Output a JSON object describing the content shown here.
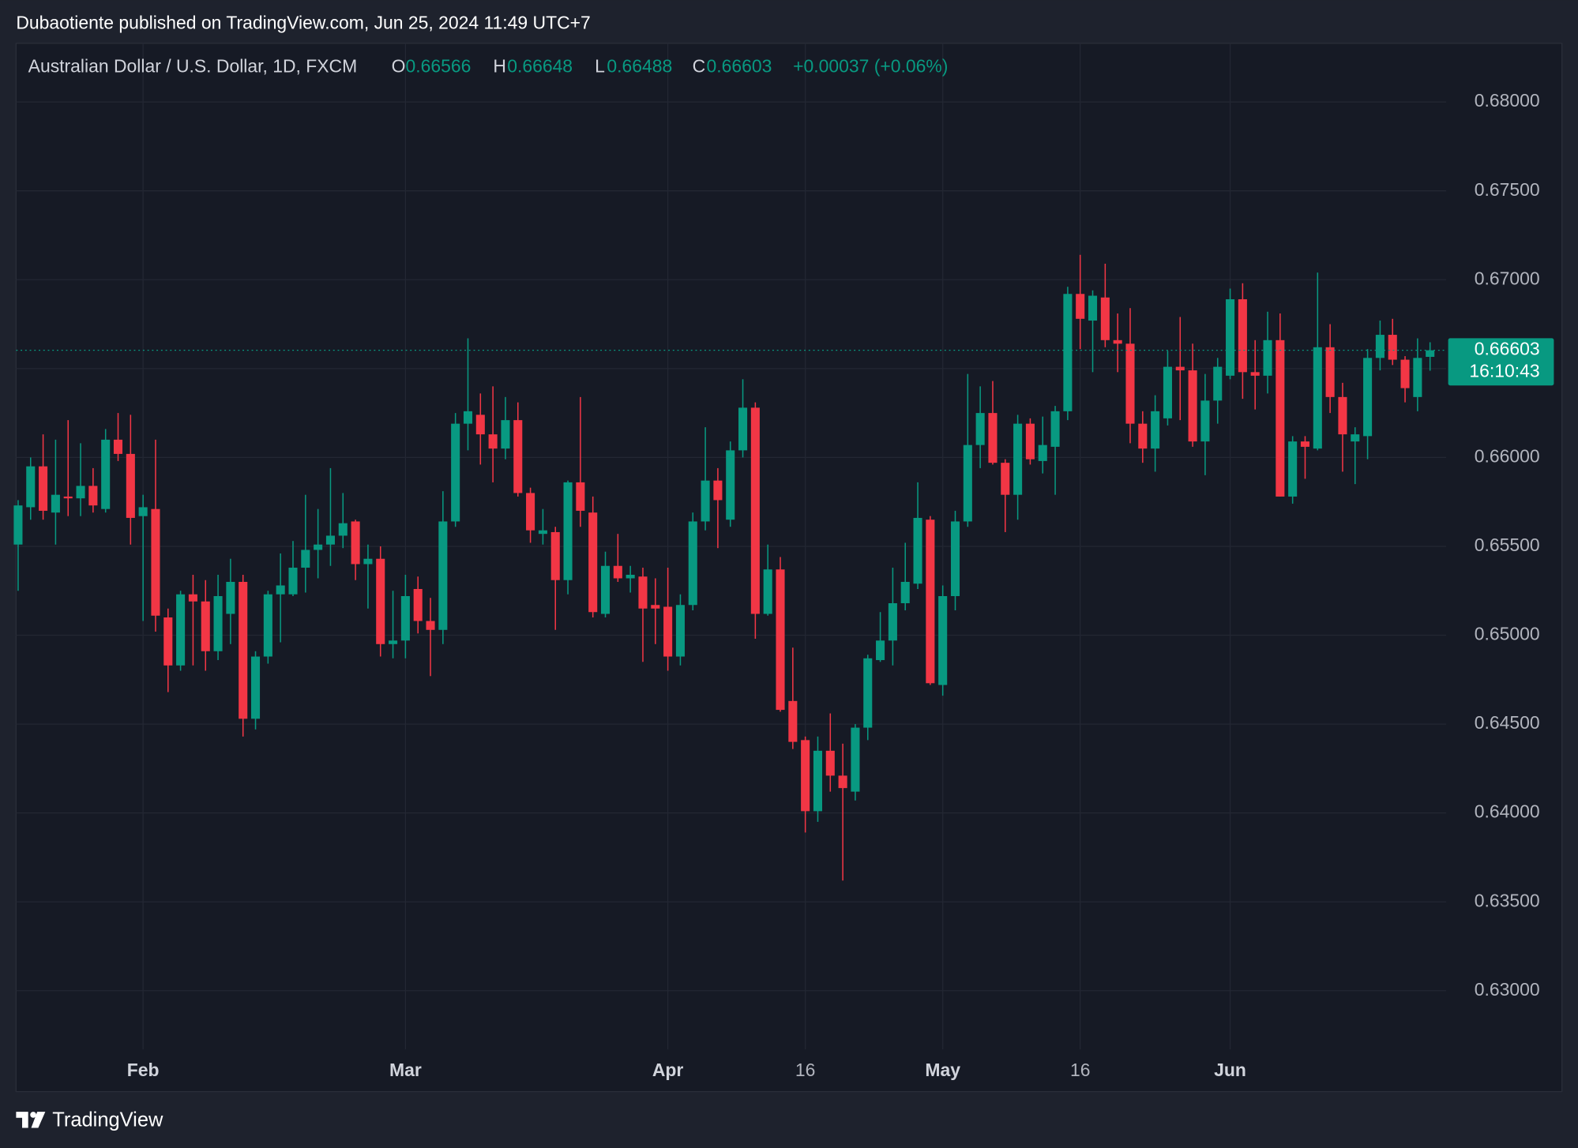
{
  "header": {
    "text": "Dubaotiente published on TradingView.com, Jun 25, 2024 11:49 UTC+7"
  },
  "footer": {
    "brand": "TradingView"
  },
  "chart_data": {
    "type": "candlestick",
    "symbol": "Australian Dollar / U.S. Dollar, 1D, FXCM",
    "ohlc_labels": [
      "O",
      "H",
      "L",
      "C"
    ],
    "change_label": "+0.00037 (+0.06%)",
    "countdown": "16:10:43",
    "up_color": "#089981",
    "down_color": "#f23645",
    "grid": true,
    "last_price_line": true,
    "ylim": [
      0.6267,
      0.6833
    ],
    "yticks": [
      {
        "value": 0.63,
        "label": "0.63000"
      },
      {
        "value": 0.635,
        "label": "0.63500"
      },
      {
        "value": 0.64,
        "label": "0.64000"
      },
      {
        "value": 0.645,
        "label": "0.64500"
      },
      {
        "value": 0.65,
        "label": "0.65000"
      },
      {
        "value": 0.655,
        "label": "0.65500"
      },
      {
        "value": 0.66,
        "label": "0.66000"
      },
      {
        "value": 0.665,
        "label": "0.66500"
      },
      {
        "value": 0.67,
        "label": "0.67000"
      },
      {
        "value": 0.675,
        "label": "0.67500"
      },
      {
        "value": 0.68,
        "label": "0.68000"
      }
    ],
    "categories": [
      null,
      null,
      null,
      null,
      null,
      null,
      null,
      null,
      null,
      null,
      "Feb",
      null,
      null,
      null,
      null,
      null,
      null,
      null,
      null,
      null,
      null,
      null,
      null,
      null,
      null,
      null,
      null,
      null,
      null,
      null,
      null,
      "Mar",
      null,
      null,
      null,
      null,
      null,
      null,
      null,
      null,
      null,
      null,
      null,
      null,
      null,
      null,
      null,
      null,
      null,
      null,
      null,
      null,
      "Apr",
      null,
      null,
      null,
      null,
      null,
      null,
      null,
      null,
      null,
      null,
      "16",
      null,
      null,
      null,
      null,
      null,
      null,
      null,
      null,
      null,
      null,
      "May",
      null,
      null,
      null,
      null,
      null,
      null,
      null,
      null,
      null,
      null,
      "16",
      null,
      null,
      null,
      null,
      null,
      null,
      null,
      null,
      null,
      null,
      null,
      "Jun",
      null,
      null,
      null,
      null,
      null,
      null,
      null,
      null,
      null,
      null,
      null,
      null,
      null,
      null,
      null,
      null
    ],
    "open": [
      0.6551,
      0.6572,
      0.6595,
      0.6569,
      0.6578,
      0.6577,
      0.6584,
      0.6571,
      0.661,
      0.6602,
      0.6567,
      0.6571,
      0.651,
      0.6483,
      0.6523,
      0.6519,
      0.6491,
      0.6512,
      0.653,
      0.6453,
      0.6488,
      0.6523,
      0.6523,
      0.6538,
      0.6548,
      0.6551,
      0.6556,
      0.6564,
      0.654,
      0.6543,
      0.6495,
      0.6497,
      0.6526,
      0.6508,
      0.6503,
      0.6564,
      0.6619,
      0.6624,
      0.6613,
      0.6605,
      0.6621,
      0.658,
      0.6557,
      0.6558,
      0.6531,
      0.6586,
      0.6569,
      0.6512,
      0.6539,
      0.6532,
      0.6533,
      0.6517,
      0.6516,
      0.6488,
      0.6517,
      0.6564,
      0.6587,
      0.6565,
      0.6604,
      0.6628,
      0.6512,
      0.6537,
      0.6463,
      0.6441,
      0.6401,
      0.6435,
      0.6421,
      0.6412,
      0.6448,
      0.6486,
      0.6497,
      0.6518,
      0.6529,
      0.6565,
      0.6472,
      0.6522,
      0.6564,
      0.6607,
      0.6625,
      0.6597,
      0.6579,
      0.6619,
      0.6598,
      0.6606,
      0.6626,
      0.6692,
      0.6677,
      0.669,
      0.6666,
      0.6664,
      0.6619,
      0.6605,
      0.6622,
      0.6651,
      0.6649,
      0.6609,
      0.6632,
      0.6646,
      0.6689,
      0.6648,
      0.6646,
      0.6666,
      0.6578,
      0.6609,
      0.6605,
      0.6662,
      0.6634,
      0.6609,
      0.6612,
      0.6656,
      0.6669,
      0.6655,
      0.6634,
      0.66566
    ],
    "high": [
      0.6576,
      0.66,
      0.6613,
      0.661,
      0.6621,
      0.6608,
      0.6594,
      0.6616,
      0.6625,
      0.6624,
      0.6579,
      0.661,
      0.6515,
      0.6525,
      0.6534,
      0.6531,
      0.6534,
      0.6543,
      0.6534,
      0.6491,
      0.6525,
      0.6546,
      0.6553,
      0.6579,
      0.6571,
      0.6594,
      0.658,
      0.6565,
      0.6551,
      0.655,
      0.6525,
      0.6534,
      0.6533,
      0.6521,
      0.6581,
      0.6625,
      0.6667,
      0.6636,
      0.664,
      0.6634,
      0.6631,
      0.6583,
      0.6571,
      0.6561,
      0.6587,
      0.6634,
      0.6578,
      0.6547,
      0.6557,
      0.6539,
      0.6538,
      0.6532,
      0.6538,
      0.6523,
      0.6569,
      0.6617,
      0.6594,
      0.6609,
      0.6644,
      0.6631,
      0.6551,
      0.6544,
      0.6493,
      0.6443,
      0.6443,
      0.6456,
      0.6439,
      0.645,
      0.6489,
      0.6513,
      0.6538,
      0.6552,
      0.6586,
      0.6567,
      0.6528,
      0.657,
      0.6647,
      0.664,
      0.6643,
      0.6599,
      0.6624,
      0.6622,
      0.6623,
      0.6629,
      0.6696,
      0.6714,
      0.6694,
      0.6709,
      0.6681,
      0.6684,
      0.6626,
      0.6635,
      0.666,
      0.6679,
      0.6664,
      0.6647,
      0.6656,
      0.6695,
      0.6698,
      0.6666,
      0.6682,
      0.6681,
      0.6612,
      0.6612,
      0.6704,
      0.6675,
      0.6642,
      0.6617,
      0.6661,
      0.6677,
      0.6678,
      0.6657,
      0.6667,
      0.66648
    ],
    "low": [
      0.6525,
      0.6565,
      0.6565,
      0.6551,
      0.6567,
      0.6567,
      0.6569,
      0.6569,
      0.6598,
      0.6551,
      0.6508,
      0.6502,
      0.6468,
      0.648,
      0.6483,
      0.648,
      0.6486,
      0.6495,
      0.6443,
      0.6447,
      0.6484,
      0.6496,
      0.6522,
      0.6524,
      0.6532,
      0.6539,
      0.6549,
      0.6531,
      0.6515,
      0.6488,
      0.6487,
      0.6487,
      0.6501,
      0.6477,
      0.6495,
      0.6561,
      0.6604,
      0.6596,
      0.6586,
      0.6599,
      0.6578,
      0.6552,
      0.6551,
      0.6503,
      0.6523,
      0.6561,
      0.651,
      0.651,
      0.653,
      0.6524,
      0.6485,
      0.6495,
      0.648,
      0.6483,
      0.6514,
      0.6559,
      0.6549,
      0.6561,
      0.66,
      0.6498,
      0.6511,
      0.6457,
      0.6436,
      0.6389,
      0.6395,
      0.6412,
      0.6362,
      0.6407,
      0.6441,
      0.6485,
      0.6483,
      0.6514,
      0.6526,
      0.6472,
      0.6466,
      0.6514,
      0.6561,
      0.6594,
      0.6596,
      0.6558,
      0.6565,
      0.6596,
      0.6591,
      0.6579,
      0.6621,
      0.6661,
      0.6648,
      0.6662,
      0.6648,
      0.6608,
      0.6597,
      0.6592,
      0.6618,
      0.6621,
      0.6606,
      0.659,
      0.6619,
      0.6644,
      0.6633,
      0.6627,
      0.6636,
      0.6578,
      0.6574,
      0.6588,
      0.6604,
      0.6625,
      0.6592,
      0.6585,
      0.6599,
      0.6649,
      0.6652,
      0.6631,
      0.6626,
      0.66488
    ],
    "close": [
      0.6573,
      0.6595,
      0.657,
      0.6579,
      0.6577,
      0.6584,
      0.6573,
      0.661,
      0.6602,
      0.6566,
      0.6572,
      0.6511,
      0.6483,
      0.6523,
      0.6519,
      0.6491,
      0.6522,
      0.653,
      0.6453,
      0.6488,
      0.6523,
      0.6528,
      0.6538,
      0.6548,
      0.6551,
      0.6556,
      0.6563,
      0.654,
      0.6543,
      0.6495,
      0.6497,
      0.6522,
      0.6508,
      0.6503,
      0.6564,
      0.6619,
      0.6626,
      0.6613,
      0.6605,
      0.6621,
      0.658,
      0.6559,
      0.6559,
      0.6531,
      0.6586,
      0.657,
      0.6513,
      0.6539,
      0.6532,
      0.6534,
      0.6515,
      0.6515,
      0.6488,
      0.6517,
      0.6564,
      0.6587,
      0.6576,
      0.6604,
      0.6628,
      0.6512,
      0.6537,
      0.6458,
      0.644,
      0.6401,
      0.6435,
      0.6421,
      0.6414,
      0.6448,
      0.6487,
      0.6497,
      0.6518,
      0.653,
      0.6566,
      0.6473,
      0.6522,
      0.6564,
      0.6607,
      0.6625,
      0.6597,
      0.6579,
      0.6619,
      0.6599,
      0.6607,
      0.6626,
      0.6692,
      0.6678,
      0.6691,
      0.6666,
      0.6664,
      0.6619,
      0.6605,
      0.6626,
      0.6651,
      0.6649,
      0.6609,
      0.6632,
      0.6651,
      0.6689,
      0.6648,
      0.6646,
      0.6666,
      0.6578,
      0.6609,
      0.6606,
      0.6662,
      0.6634,
      0.6613,
      0.6613,
      0.6656,
      0.6669,
      0.6655,
      0.6639,
      0.6656,
      0.66603
    ]
  }
}
